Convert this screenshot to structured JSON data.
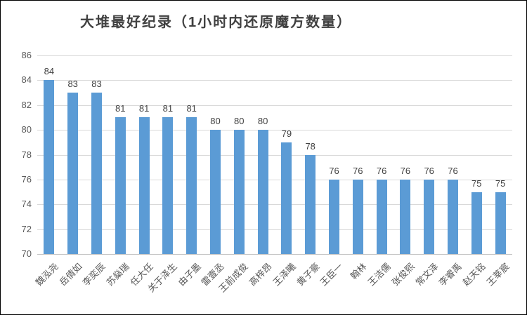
{
  "window": {
    "background": "#ffffff",
    "border_color": "#000000"
  },
  "chart_data": {
    "type": "bar",
    "title": "大堆最好纪录（1小时内还原魔方数量）",
    "categories": [
      "魏泓尧",
      "岳倩如",
      "李奕辰",
      "苏燊瑞",
      "任大任",
      "关于泽生",
      "由子墨",
      "雷壹丞",
      "王前成俊",
      "高梓昂",
      "王泽曦",
      "黄子豪",
      "王臣一",
      "翰林",
      "王洁儒",
      "张俊熙",
      "常文泽",
      "李睿禹",
      "赵天铭",
      "王莘宸"
    ],
    "values": [
      84,
      83,
      83,
      81,
      81,
      81,
      81,
      80,
      80,
      80,
      79,
      78,
      76,
      76,
      76,
      76,
      76,
      76,
      75,
      75
    ],
    "value_labels_shown": true,
    "y_ticks": [
      86,
      84,
      82,
      80,
      78,
      76,
      74,
      72,
      70
    ],
    "ylim": [
      70,
      86
    ],
    "xlabel": "",
    "ylabel": "",
    "legend": "none",
    "grid": true,
    "x_label_rotation_deg": 45,
    "bar_color": "#5b9bd5",
    "gridline_color": "#d9d9d9",
    "axis_line_color": "#bfbfbf",
    "axis_label_color": "#595959",
    "value_label_color": "#404040",
    "title_color": "#404040"
  }
}
